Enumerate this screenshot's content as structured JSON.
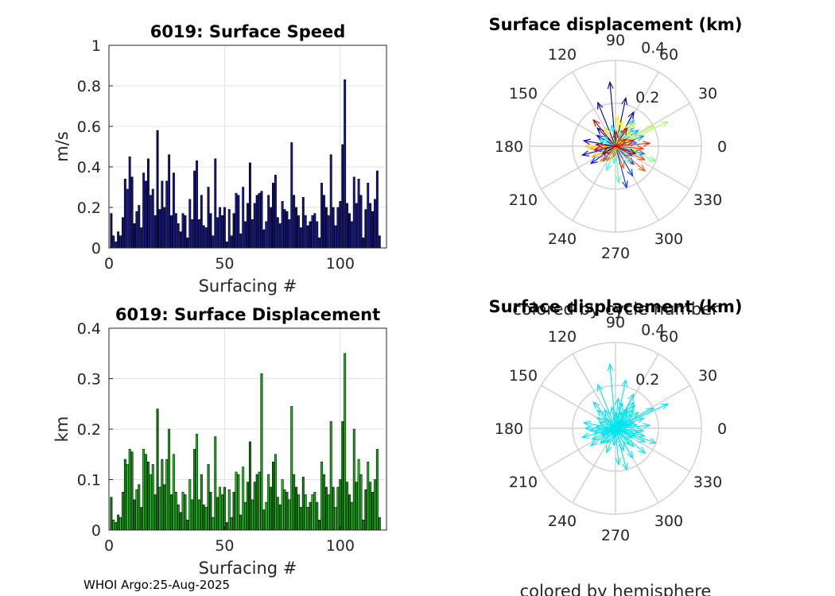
{
  "footer": "WHOI Argo:25-Aug-2025",
  "chart_data": [
    {
      "type": "bar",
      "id": "speed",
      "title": "6019: Surface Speed",
      "xlabel": "Surfacing #",
      "ylabel": "m/s",
      "xlim": [
        0,
        120
      ],
      "ylim": [
        0,
        1
      ],
      "xticks": [
        "0",
        "50",
        "100"
      ],
      "yticks": [
        "0",
        "0.2",
        "0.4",
        "0.6",
        "0.8",
        "1"
      ],
      "x": [
        1,
        2,
        3,
        4,
        5,
        6,
        7,
        8,
        9,
        10,
        11,
        12,
        13,
        14,
        15,
        16,
        17,
        18,
        19,
        20,
        21,
        22,
        23,
        24,
        25,
        26,
        27,
        28,
        29,
        30,
        31,
        32,
        33,
        34,
        35,
        36,
        37,
        38,
        39,
        40,
        41,
        42,
        43,
        44,
        45,
        46,
        47,
        48,
        49,
        50,
        51,
        52,
        53,
        54,
        55,
        56,
        57,
        58,
        59,
        60,
        61,
        62,
        63,
        64,
        65,
        66,
        67,
        68,
        69,
        70,
        71,
        72,
        73,
        74,
        75,
        76,
        77,
        78,
        79,
        80,
        81,
        82,
        83,
        84,
        85,
        86,
        87,
        88,
        89,
        90,
        91,
        92,
        93,
        94,
        95,
        96,
        97,
        98,
        99,
        100,
        101,
        102,
        103,
        104,
        105,
        106,
        107,
        108,
        109,
        110,
        111,
        112,
        113,
        114,
        115,
        116,
        117
      ],
      "values": [
        0.17,
        0.06,
        0.03,
        0.08,
        0.06,
        0.15,
        0.34,
        0.29,
        0.45,
        0.35,
        0.12,
        0.18,
        0.21,
        0.1,
        0.37,
        0.33,
        0.44,
        0.26,
        0.29,
        0.16,
        0.58,
        0.19,
        0.33,
        0.2,
        0.33,
        0.46,
        0.16,
        0.37,
        0.17,
        0.12,
        0.08,
        0.17,
        0.16,
        0.05,
        0.24,
        0.14,
        0.38,
        0.43,
        0.14,
        0.26,
        0.11,
        0.1,
        0.3,
        0.17,
        0.06,
        0.44,
        0.15,
        0.2,
        0.16,
        0.2,
        0.03,
        0.19,
        0.06,
        0.17,
        0.27,
        0.26,
        0.07,
        0.3,
        0.13,
        0.22,
        0.42,
        0.14,
        0.22,
        0.26,
        0.27,
        0.28,
        0.09,
        0.13,
        0.26,
        0.2,
        0.32,
        0.36,
        0.15,
        0.12,
        0.23,
        0.19,
        0.18,
        0.14,
        0.52,
        0.26,
        0.2,
        0.16,
        0.1,
        0.25,
        0.16,
        0.11,
        0.13,
        0.16,
        0.17,
        0.13,
        0.05,
        0.32,
        0.26,
        0.2,
        0.16,
        0.46,
        0.2,
        0.11,
        0.2,
        0.23,
        0.51,
        0.83,
        0.22,
        0.17,
        0.13,
        0.35,
        0.22,
        0.34,
        0.26,
        0.05,
        0.19,
        0.32,
        0.22,
        0.18,
        0.24,
        0.38,
        0.06
      ],
      "bar_color": "#1a1ab4"
    },
    {
      "type": "bar",
      "id": "displacement",
      "title": "6019: Surface Displacement",
      "xlabel": "Surfacing #",
      "ylabel": "km",
      "xlim": [
        0,
        120
      ],
      "ylim": [
        0,
        0.4
      ],
      "xticks": [
        "0",
        "50",
        "100"
      ],
      "yticks": [
        "0",
        "0.1",
        "0.2",
        "0.3",
        "0.4"
      ],
      "x": [
        1,
        2,
        3,
        4,
        5,
        6,
        7,
        8,
        9,
        10,
        11,
        12,
        13,
        14,
        15,
        16,
        17,
        18,
        19,
        20,
        21,
        22,
        23,
        24,
        25,
        26,
        27,
        28,
        29,
        30,
        31,
        32,
        33,
        34,
        35,
        36,
        37,
        38,
        39,
        40,
        41,
        42,
        43,
        44,
        45,
        46,
        47,
        48,
        49,
        50,
        51,
        52,
        53,
        54,
        55,
        56,
        57,
        58,
        59,
        60,
        61,
        62,
        63,
        64,
        65,
        66,
        67,
        68,
        69,
        70,
        71,
        72,
        73,
        74,
        75,
        76,
        77,
        78,
        79,
        80,
        81,
        82,
        83,
        84,
        85,
        86,
        87,
        88,
        89,
        90,
        91,
        92,
        93,
        94,
        95,
        96,
        97,
        98,
        99,
        100,
        101,
        102,
        103,
        104,
        105,
        106,
        107,
        108,
        109,
        110,
        111,
        112,
        113,
        114,
        115,
        116,
        117
      ],
      "values": [
        0.065,
        0.02,
        0.015,
        0.03,
        0.025,
        0.075,
        0.14,
        0.13,
        0.16,
        0.155,
        0.06,
        0.08,
        0.09,
        0.045,
        0.16,
        0.15,
        0.135,
        0.11,
        0.13,
        0.07,
        0.24,
        0.085,
        0.14,
        0.09,
        0.14,
        0.2,
        0.07,
        0.15,
        0.075,
        0.05,
        0.035,
        0.075,
        0.07,
        0.02,
        0.1,
        0.06,
        0.16,
        0.19,
        0.06,
        0.11,
        0.05,
        0.045,
        0.13,
        0.075,
        0.025,
        0.185,
        0.065,
        0.085,
        0.07,
        0.085,
        0.015,
        0.08,
        0.025,
        0.075,
        0.115,
        0.11,
        0.03,
        0.125,
        0.055,
        0.095,
        0.175,
        0.06,
        0.095,
        0.11,
        0.115,
        0.31,
        0.04,
        0.055,
        0.11,
        0.085,
        0.135,
        0.15,
        0.065,
        0.05,
        0.1,
        0.08,
        0.075,
        0.06,
        0.245,
        0.11,
        0.085,
        0.07,
        0.045,
        0.105,
        0.07,
        0.045,
        0.055,
        0.07,
        0.075,
        0.055,
        0.02,
        0.135,
        0.11,
        0.085,
        0.07,
        0.215,
        0.085,
        0.045,
        0.085,
        0.1,
        0.215,
        0.35,
        0.095,
        0.07,
        0.055,
        0.2,
        0.095,
        0.14,
        0.11,
        0.02,
        0.08,
        0.135,
        0.095,
        0.075,
        0.1,
        0.16,
        0.025
      ],
      "bar_color": "#14e614"
    },
    {
      "type": "polar",
      "id": "compass-cycle",
      "title": "Surface displacement (km)",
      "caption": "colored by cycle number",
      "rmax": 0.4,
      "rticks": [
        "0.2",
        "0.4"
      ],
      "angle_labels": [
        "0",
        "30",
        "60",
        "90",
        "120",
        "150",
        "180",
        "210",
        "240",
        "270",
        "300",
        "330"
      ],
      "color_mode": "cycle",
      "arrows": [
        {
          "angle": 95,
          "r": 0.3
        },
        {
          "angle": 78,
          "r": 0.23
        },
        {
          "angle": 112,
          "r": 0.22
        },
        {
          "angle": 62,
          "r": 0.18
        },
        {
          "angle": 135,
          "r": 0.12
        },
        {
          "angle": 150,
          "r": 0.1
        },
        {
          "angle": 170,
          "r": 0.15
        },
        {
          "angle": 195,
          "r": 0.16
        },
        {
          "angle": 215,
          "r": 0.14
        },
        {
          "angle": 230,
          "r": 0.09
        },
        {
          "angle": 285,
          "r": 0.2
        },
        {
          "angle": 300,
          "r": 0.16
        },
        {
          "angle": 315,
          "r": 0.12
        },
        {
          "angle": 330,
          "r": 0.09
        },
        {
          "angle": 345,
          "r": 0.14
        },
        {
          "angle": 10,
          "r": 0.1
        },
        {
          "angle": 20,
          "r": 0.14
        },
        {
          "angle": 35,
          "r": 0.13
        },
        {
          "angle": 45,
          "r": 0.12
        },
        {
          "angle": 55,
          "r": 0.15
        },
        {
          "angle": 70,
          "r": 0.08
        },
        {
          "angle": 100,
          "r": 0.1
        },
        {
          "angle": 140,
          "r": 0.07
        },
        {
          "angle": 160,
          "r": 0.08
        },
        {
          "angle": 200,
          "r": 0.07
        },
        {
          "angle": 250,
          "r": 0.12
        },
        {
          "angle": 265,
          "r": 0.08
        },
        {
          "angle": 275,
          "r": 0.17
        },
        {
          "angle": 310,
          "r": 0.1
        },
        {
          "angle": 340,
          "r": 0.2
        },
        {
          "angle": 350,
          "r": 0.11
        },
        {
          "angle": 15,
          "r": 0.07
        },
        {
          "angle": 25,
          "r": 0.27
        },
        {
          "angle": 28,
          "r": 0.2
        },
        {
          "angle": 40,
          "r": 0.1
        },
        {
          "angle": 50,
          "r": 0.14
        },
        {
          "angle": 60,
          "r": 0.11
        },
        {
          "angle": 75,
          "r": 0.12
        },
        {
          "angle": 85,
          "r": 0.14
        },
        {
          "angle": 120,
          "r": 0.1
        },
        {
          "angle": 180,
          "r": 0.14
        },
        {
          "angle": 185,
          "r": 0.12
        },
        {
          "angle": 205,
          "r": 0.12
        },
        {
          "angle": 225,
          "r": 0.1
        },
        {
          "angle": 240,
          "r": 0.08
        },
        {
          "angle": 260,
          "r": 0.05
        },
        {
          "angle": 290,
          "r": 0.11
        },
        {
          "angle": 320,
          "r": 0.18
        },
        {
          "angle": 335,
          "r": 0.15
        },
        {
          "angle": 355,
          "r": 0.13
        },
        {
          "angle": 5,
          "r": 0.16
        },
        {
          "angle": 18,
          "r": 0.09
        },
        {
          "angle": 33,
          "r": 0.06
        },
        {
          "angle": 58,
          "r": 0.1
        },
        {
          "angle": 88,
          "r": 0.07
        },
        {
          "angle": 130,
          "r": 0.16
        },
        {
          "angle": 175,
          "r": 0.09
        },
        {
          "angle": 190,
          "r": 0.1
        },
        {
          "angle": 210,
          "r": 0.07
        },
        {
          "angle": 340,
          "r": 0.1
        }
      ]
    },
    {
      "type": "polar",
      "id": "compass-hemisphere",
      "title": "Surface displacement (km)",
      "caption": "colored by hemisphere",
      "rmax": 0.4,
      "rticks": [
        "0.2",
        "0.4"
      ],
      "angle_labels": [
        "0",
        "30",
        "60",
        "90",
        "120",
        "150",
        "180",
        "210",
        "240",
        "270",
        "300",
        "330"
      ],
      "color_mode": "single",
      "arrow_color": "#00e5ee",
      "arrows": [
        {
          "angle": 95,
          "r": 0.3
        },
        {
          "angle": 78,
          "r": 0.23
        },
        {
          "angle": 112,
          "r": 0.22
        },
        {
          "angle": 62,
          "r": 0.18
        },
        {
          "angle": 135,
          "r": 0.12
        },
        {
          "angle": 150,
          "r": 0.1
        },
        {
          "angle": 170,
          "r": 0.15
        },
        {
          "angle": 195,
          "r": 0.16
        },
        {
          "angle": 215,
          "r": 0.14
        },
        {
          "angle": 230,
          "r": 0.09
        },
        {
          "angle": 285,
          "r": 0.2
        },
        {
          "angle": 300,
          "r": 0.16
        },
        {
          "angle": 315,
          "r": 0.12
        },
        {
          "angle": 330,
          "r": 0.09
        },
        {
          "angle": 345,
          "r": 0.14
        },
        {
          "angle": 10,
          "r": 0.1
        },
        {
          "angle": 20,
          "r": 0.14
        },
        {
          "angle": 35,
          "r": 0.13
        },
        {
          "angle": 45,
          "r": 0.12
        },
        {
          "angle": 55,
          "r": 0.15
        },
        {
          "angle": 70,
          "r": 0.08
        },
        {
          "angle": 100,
          "r": 0.1
        },
        {
          "angle": 140,
          "r": 0.07
        },
        {
          "angle": 160,
          "r": 0.08
        },
        {
          "angle": 200,
          "r": 0.07
        },
        {
          "angle": 250,
          "r": 0.12
        },
        {
          "angle": 265,
          "r": 0.08
        },
        {
          "angle": 275,
          "r": 0.17
        },
        {
          "angle": 310,
          "r": 0.1
        },
        {
          "angle": 340,
          "r": 0.2
        },
        {
          "angle": 350,
          "r": 0.11
        },
        {
          "angle": 15,
          "r": 0.07
        },
        {
          "angle": 25,
          "r": 0.27
        },
        {
          "angle": 28,
          "r": 0.2
        },
        {
          "angle": 40,
          "r": 0.1
        },
        {
          "angle": 50,
          "r": 0.14
        },
        {
          "angle": 60,
          "r": 0.11
        },
        {
          "angle": 75,
          "r": 0.12
        },
        {
          "angle": 85,
          "r": 0.14
        },
        {
          "angle": 120,
          "r": 0.1
        },
        {
          "angle": 180,
          "r": 0.14
        },
        {
          "angle": 185,
          "r": 0.12
        },
        {
          "angle": 205,
          "r": 0.12
        },
        {
          "angle": 225,
          "r": 0.1
        },
        {
          "angle": 240,
          "r": 0.08
        },
        {
          "angle": 260,
          "r": 0.05
        },
        {
          "angle": 290,
          "r": 0.11
        },
        {
          "angle": 320,
          "r": 0.18
        },
        {
          "angle": 335,
          "r": 0.15
        },
        {
          "angle": 355,
          "r": 0.13
        },
        {
          "angle": 5,
          "r": 0.16
        },
        {
          "angle": 18,
          "r": 0.09
        },
        {
          "angle": 33,
          "r": 0.06
        },
        {
          "angle": 58,
          "r": 0.1
        },
        {
          "angle": 88,
          "r": 0.07
        },
        {
          "angle": 130,
          "r": 0.16
        },
        {
          "angle": 175,
          "r": 0.09
        },
        {
          "angle": 190,
          "r": 0.1
        },
        {
          "angle": 210,
          "r": 0.07
        },
        {
          "angle": 340,
          "r": 0.1
        }
      ]
    }
  ]
}
